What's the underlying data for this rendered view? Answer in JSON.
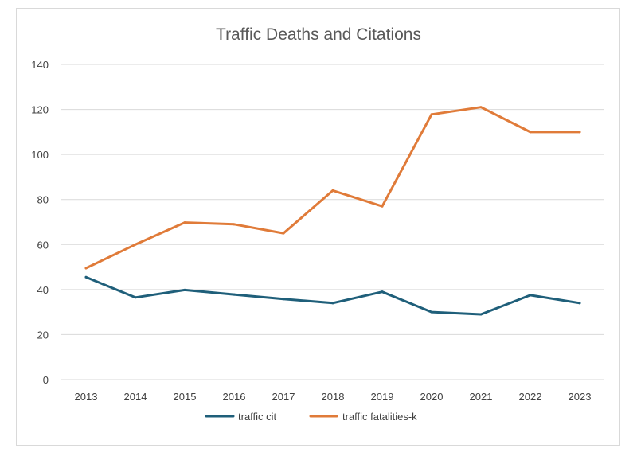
{
  "chart_data": {
    "type": "line",
    "title": "Traffic Deaths and Citations",
    "xlabel": "",
    "ylabel": "",
    "categories": [
      "2013",
      "2014",
      "2015",
      "2016",
      "2017",
      "2018",
      "2019",
      "2020",
      "2021",
      "2022",
      "2023"
    ],
    "ylim": [
      0,
      140
    ],
    "yticks": [
      "0",
      "20",
      "40",
      "60",
      "80",
      "100",
      "120",
      "140"
    ],
    "grid": true,
    "legend_position": "bottom",
    "series": [
      {
        "name": "traffic cit",
        "color": "#1f5f7a",
        "values": [
          45.5,
          36.5,
          39.8,
          37.8,
          35.8,
          34,
          39,
          30,
          29,
          37.5,
          34
        ]
      },
      {
        "name": "traffic fatalities-k",
        "color": "#e07b39",
        "values": [
          49.5,
          60,
          69.8,
          69,
          65,
          84,
          77,
          117.8,
          121,
          110,
          110
        ]
      }
    ]
  }
}
